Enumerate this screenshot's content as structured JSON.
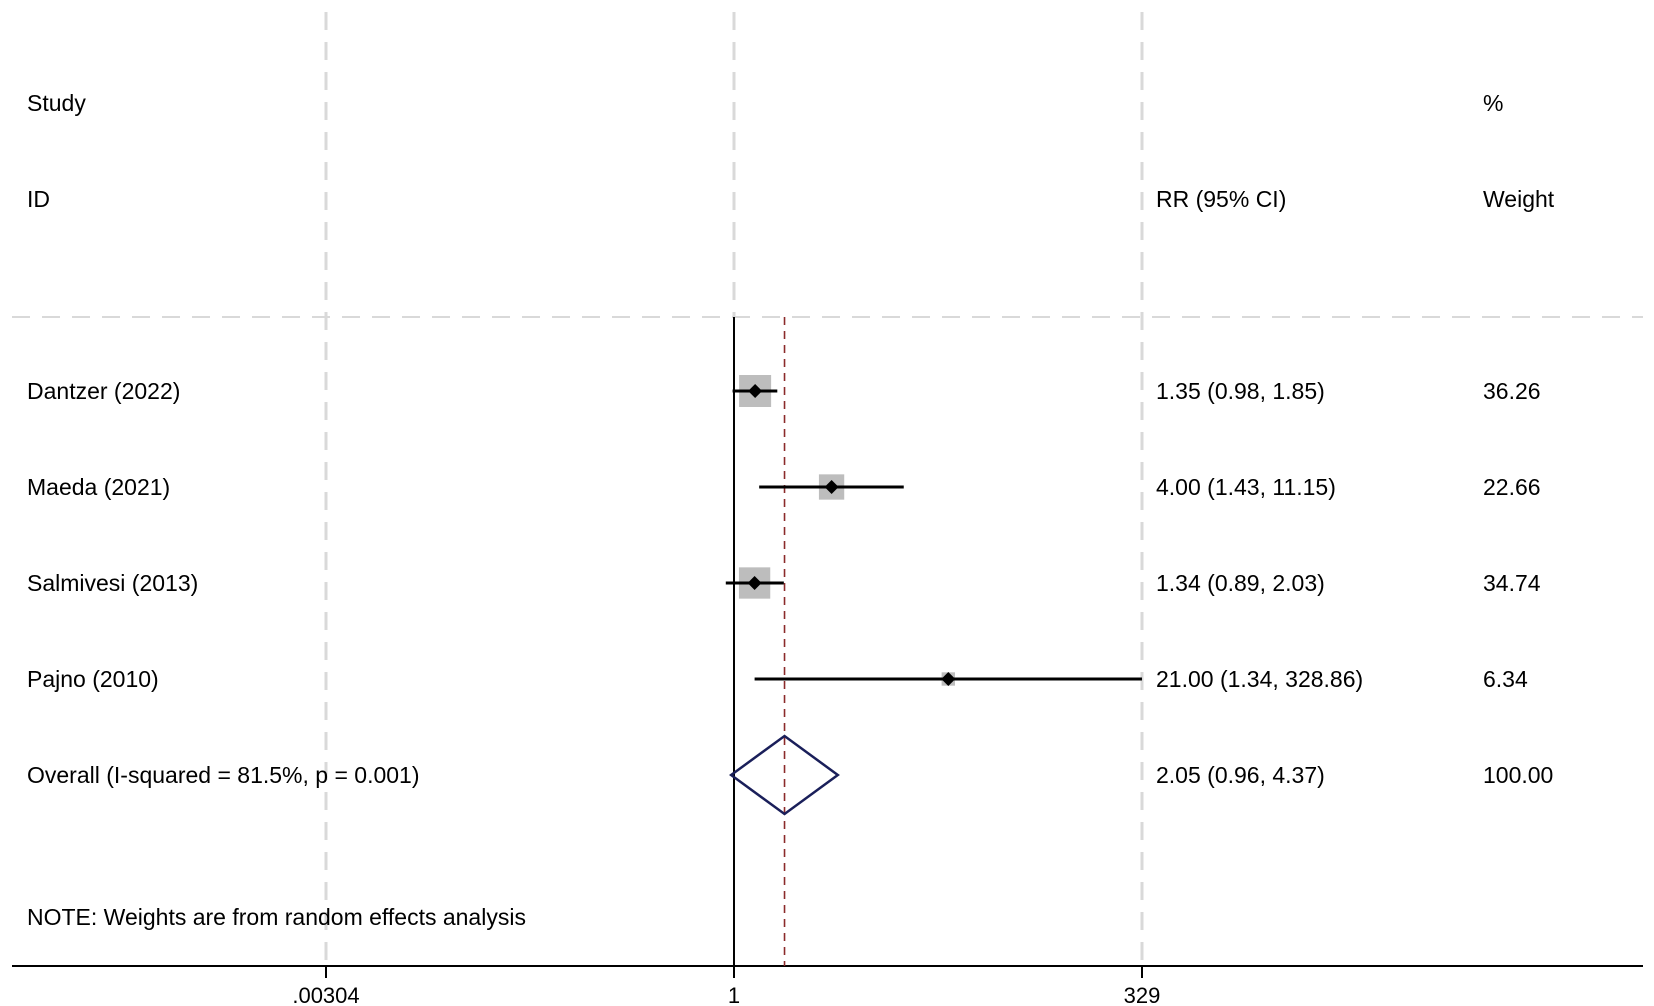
{
  "header": {
    "study_line1": "Study",
    "study_line2": "ID",
    "effect_label": "RR (95% CI)",
    "weight_line1": "%",
    "weight_line2": "Weight"
  },
  "note": "NOTE: Weights are from random effects analysis",
  "colors": {
    "box": "#bdbdbd",
    "line": "#000000",
    "diamond": "#1a1f5a",
    "ref_dashed": "#8b2a2a",
    "grid": "#d9d9d9"
  },
  "chart_data": {
    "type": "forest",
    "x_scale": "log",
    "xlim": [
      0.00304,
      329
    ],
    "x_ticks": [
      {
        "value": 0.00304,
        "label": ".00304"
      },
      {
        "value": 1,
        "label": "1"
      },
      {
        "value": 329,
        "label": "329"
      }
    ],
    "null_line": 1,
    "overall_line": 2.05,
    "grid": true,
    "studies": [
      {
        "name": "Dantzer (2022)",
        "rr": 1.35,
        "lo": 0.98,
        "hi": 1.85,
        "ci_text": "1.35 (0.98, 1.85)",
        "weight": 36.26,
        "weight_text": "36.26"
      },
      {
        "name": "Maeda (2021)",
        "rr": 4.0,
        "lo": 1.43,
        "hi": 11.15,
        "ci_text": "4.00 (1.43, 11.15)",
        "weight": 22.66,
        "weight_text": "22.66"
      },
      {
        "name": "Salmivesi (2013)",
        "rr": 1.34,
        "lo": 0.89,
        "hi": 2.03,
        "ci_text": "1.34 (0.89, 2.03)",
        "weight": 34.74,
        "weight_text": "34.74"
      },
      {
        "name": "Pajno (2010)",
        "rr": 21.0,
        "lo": 1.34,
        "hi": 328.86,
        "ci_text": "21.00 (1.34, 328.86)",
        "weight": 6.34,
        "weight_text": "6.34"
      }
    ],
    "overall": {
      "name": "Overall  (I-squared = 81.5%, p = 0.001)",
      "rr": 2.05,
      "lo": 0.96,
      "hi": 4.37,
      "ci_text": "2.05 (0.96, 4.37)",
      "weight": 100.0,
      "weight_text": "100.00"
    }
  }
}
